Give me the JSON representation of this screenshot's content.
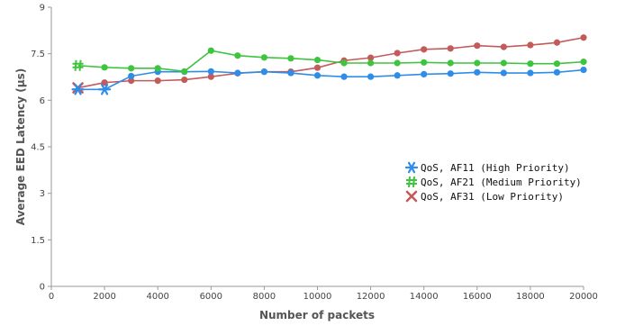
{
  "chart_data": {
    "type": "line",
    "title": "",
    "xlabel": "Number of packets",
    "ylabel": "Average EED Latency (μs)",
    "xlim": [
      0,
      20000
    ],
    "ylim": [
      0,
      9
    ],
    "xticks": [
      0,
      2000,
      4000,
      6000,
      8000,
      10000,
      12000,
      14000,
      16000,
      18000,
      20000
    ],
    "yticks": [
      0,
      1.5,
      3,
      4.5,
      6,
      7.5,
      9
    ],
    "xtick_labels": [
      "0",
      "2000",
      "4000",
      "6000",
      "8000",
      "10000",
      "12000",
      "14000",
      "16000",
      "18000",
      "20000"
    ],
    "ytick_labels": [
      "0",
      "1.5",
      "3",
      "4.5",
      "6",
      "7.5",
      "9"
    ],
    "grid": false,
    "legend_position": "right-middle",
    "x": [
      1000,
      2000,
      3000,
      4000,
      5000,
      6000,
      7000,
      8000,
      9000,
      10000,
      11000,
      12000,
      13000,
      14000,
      15000,
      16000,
      17000,
      18000,
      19000,
      20000
    ],
    "series": [
      {
        "name": "QoS, AF11 (High Priority)",
        "marker": "asterisk",
        "color": "#2e8de8",
        "values": [
          6.35,
          6.35,
          6.78,
          6.92,
          6.92,
          6.93,
          6.88,
          6.92,
          6.88,
          6.8,
          6.76,
          6.76,
          6.8,
          6.84,
          6.86,
          6.9,
          6.88,
          6.88,
          6.9,
          6.98
        ]
      },
      {
        "name": "QoS, AF21 (Medium Priority)",
        "marker": "hash",
        "color": "#3ec43e",
        "values": [
          7.12,
          7.06,
          7.03,
          7.03,
          6.93,
          7.6,
          7.44,
          7.38,
          7.35,
          7.3,
          7.2,
          7.2,
          7.2,
          7.22,
          7.2,
          7.2,
          7.2,
          7.18,
          7.18,
          7.24
        ]
      },
      {
        "name": "QoS, AF31 (Low Priority)",
        "marker": "x",
        "color": "#c35b5b",
        "values": [
          6.4,
          6.57,
          6.63,
          6.63,
          6.66,
          6.76,
          6.87,
          6.92,
          6.92,
          7.05,
          7.28,
          7.37,
          7.52,
          7.64,
          7.67,
          7.76,
          7.72,
          7.78,
          7.86,
          8.02
        ]
      }
    ]
  }
}
